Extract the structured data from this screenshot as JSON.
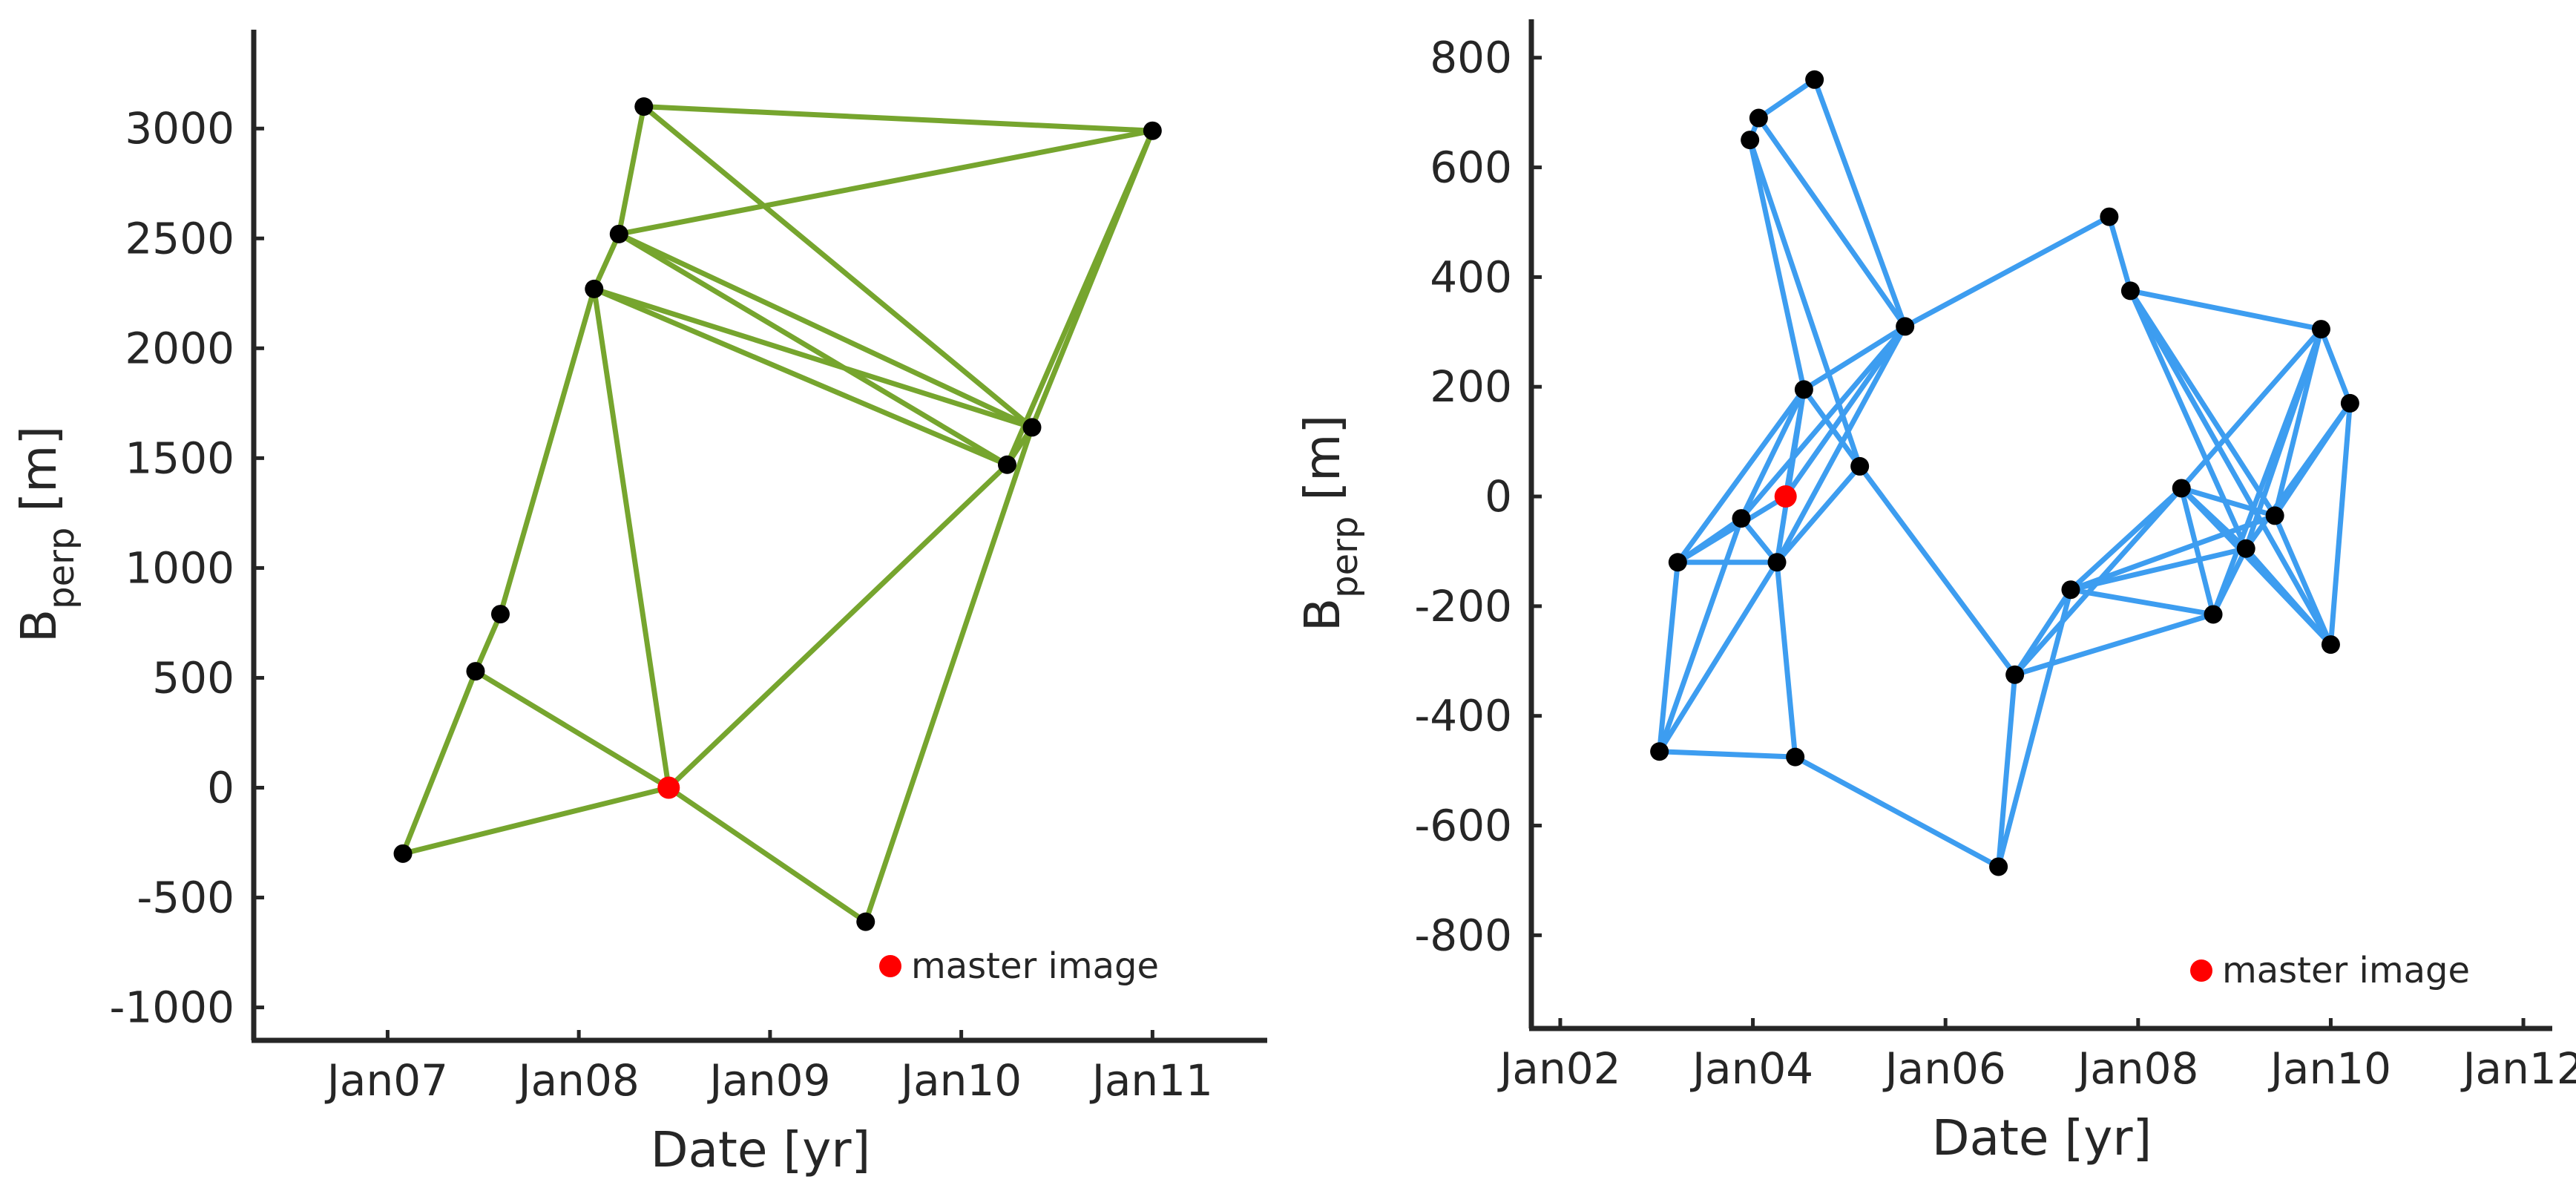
{
  "chart_data": [
    {
      "type": "scatter",
      "subtype": "baseline-network",
      "xlabel": "Date [yr]",
      "ylabel_main": "B",
      "ylabel_sub": "perp",
      "ylabel_unit": " [m]",
      "xlim": [
        2006.3,
        2011.6
      ],
      "ylim": [
        -1150,
        3450
      ],
      "xticks": [
        {
          "value": 2007,
          "label": "Jan07"
        },
        {
          "value": 2008,
          "label": "Jan08"
        },
        {
          "value": 2009,
          "label": "Jan09"
        },
        {
          "value": 2010,
          "label": "Jan10"
        },
        {
          "value": 2011,
          "label": "Jan11"
        }
      ],
      "yticks": [
        3000,
        2500,
        2000,
        1500,
        1000,
        500,
        0,
        -500,
        -1000
      ],
      "line_color": "#76a52e",
      "point_color": "#000000",
      "master_color": "#ff0000",
      "legend": {
        "label": "master image",
        "placement": "bottom-right"
      },
      "nodes": [
        {
          "date": 2007.08,
          "bperp": -300
        },
        {
          "date": 2007.46,
          "bperp": 530
        },
        {
          "date": 2007.59,
          "bperp": 790
        },
        {
          "date": 2008.08,
          "bperp": 2270
        },
        {
          "date": 2008.21,
          "bperp": 2520
        },
        {
          "date": 2008.34,
          "bperp": 3100
        },
        {
          "date": 2008.47,
          "bperp": 0,
          "master": true
        },
        {
          "date": 2009.5,
          "bperp": -610
        },
        {
          "date": 2010.24,
          "bperp": 1470
        },
        {
          "date": 2010.37,
          "bperp": 1640
        },
        {
          "date": 2011.0,
          "bperp": 2990
        }
      ],
      "edges": [
        [
          0,
          1
        ],
        [
          0,
          6
        ],
        [
          1,
          2
        ],
        [
          1,
          6
        ],
        [
          2,
          3
        ],
        [
          3,
          4
        ],
        [
          3,
          6
        ],
        [
          3,
          8
        ],
        [
          3,
          9
        ],
        [
          4,
          5
        ],
        [
          4,
          8
        ],
        [
          4,
          9
        ],
        [
          4,
          10
        ],
        [
          5,
          9
        ],
        [
          5,
          10
        ],
        [
          6,
          7
        ],
        [
          6,
          8
        ],
        [
          7,
          9
        ],
        [
          8,
          9
        ],
        [
          8,
          10
        ],
        [
          9,
          10
        ]
      ]
    },
    {
      "type": "scatter",
      "subtype": "baseline-network",
      "xlabel": "Date [yr]",
      "ylabel_main": "B",
      "ylabel_sub": "perp",
      "ylabel_unit": " [m]",
      "xlim": [
        2001.7,
        2012.3
      ],
      "ylim": [
        -970,
        870
      ],
      "xticks": [
        {
          "value": 2002,
          "label": "Jan02"
        },
        {
          "value": 2004,
          "label": "Jan04"
        },
        {
          "value": 2006,
          "label": "Jan06"
        },
        {
          "value": 2008,
          "label": "Jan08"
        },
        {
          "value": 2010,
          "label": "Jan10"
        },
        {
          "value": 2012,
          "label": "Jan12"
        }
      ],
      "yticks": [
        800,
        600,
        400,
        200,
        0,
        -200,
        -400,
        -600,
        -800
      ],
      "line_color": "#3d9df0",
      "point_color": "#000000",
      "master_color": "#ff0000",
      "legend": {
        "label": "master image",
        "placement": "bottom-right"
      },
      "nodes": [
        {
          "date": 2003.97,
          "bperp": 650
        },
        {
          "date": 2004.06,
          "bperp": 690
        },
        {
          "date": 2004.64,
          "bperp": 760
        },
        {
          "date": 2005.58,
          "bperp": 310
        },
        {
          "date": 2004.53,
          "bperp": 195
        },
        {
          "date": 2004.34,
          "bperp": 0,
          "master": true
        },
        {
          "date": 2005.11,
          "bperp": 55
        },
        {
          "date": 2003.88,
          "bperp": -40
        },
        {
          "date": 2003.22,
          "bperp": -120
        },
        {
          "date": 2004.25,
          "bperp": -120
        },
        {
          "date": 2003.03,
          "bperp": -465
        },
        {
          "date": 2004.44,
          "bperp": -475
        },
        {
          "date": 2007.7,
          "bperp": 510
        },
        {
          "date": 2007.92,
          "bperp": 375
        },
        {
          "date": 2009.9,
          "bperp": 305
        },
        {
          "date": 2010.2,
          "bperp": 170
        },
        {
          "date": 2008.45,
          "bperp": 15
        },
        {
          "date": 2009.42,
          "bperp": -35
        },
        {
          "date": 2009.12,
          "bperp": -95
        },
        {
          "date": 2007.3,
          "bperp": -170
        },
        {
          "date": 2008.78,
          "bperp": -215
        },
        {
          "date": 2010.0,
          "bperp": -270
        },
        {
          "date": 2006.72,
          "bperp": -325
        },
        {
          "date": 2006.55,
          "bperp": -675
        }
      ],
      "edges": [
        [
          0,
          1
        ],
        [
          1,
          2
        ],
        [
          0,
          4
        ],
        [
          1,
          3
        ],
        [
          2,
          3
        ],
        [
          0,
          6
        ],
        [
          3,
          4
        ],
        [
          3,
          5
        ],
        [
          3,
          7
        ],
        [
          3,
          9
        ],
        [
          3,
          12
        ],
        [
          4,
          5
        ],
        [
          4,
          7
        ],
        [
          4,
          9
        ],
        [
          4,
          8
        ],
        [
          4,
          6
        ],
        [
          5,
          8
        ],
        [
          6,
          9
        ],
        [
          6,
          22
        ],
        [
          7,
          8
        ],
        [
          7,
          9
        ],
        [
          7,
          10
        ],
        [
          8,
          9
        ],
        [
          8,
          10
        ],
        [
          9,
          10
        ],
        [
          9,
          11
        ],
        [
          10,
          11
        ],
        [
          11,
          23
        ],
        [
          23,
          22
        ],
        [
          22,
          19
        ],
        [
          22,
          20
        ],
        [
          22,
          16
        ],
        [
          23,
          19
        ],
        [
          19,
          16
        ],
        [
          19,
          17
        ],
        [
          19,
          18
        ],
        [
          19,
          20
        ],
        [
          16,
          17
        ],
        [
          16,
          18
        ],
        [
          16,
          20
        ],
        [
          16,
          21
        ],
        [
          16,
          14
        ],
        [
          12,
          13
        ],
        [
          13,
          14
        ],
        [
          13,
          17
        ],
        [
          13,
          18
        ],
        [
          13,
          21
        ],
        [
          14,
          15
        ],
        [
          14,
          17
        ],
        [
          14,
          18
        ],
        [
          15,
          17
        ],
        [
          15,
          18
        ],
        [
          15,
          21
        ],
        [
          17,
          21
        ],
        [
          18,
          20
        ],
        [
          18,
          21
        ],
        [
          20,
          14
        ]
      ]
    }
  ]
}
